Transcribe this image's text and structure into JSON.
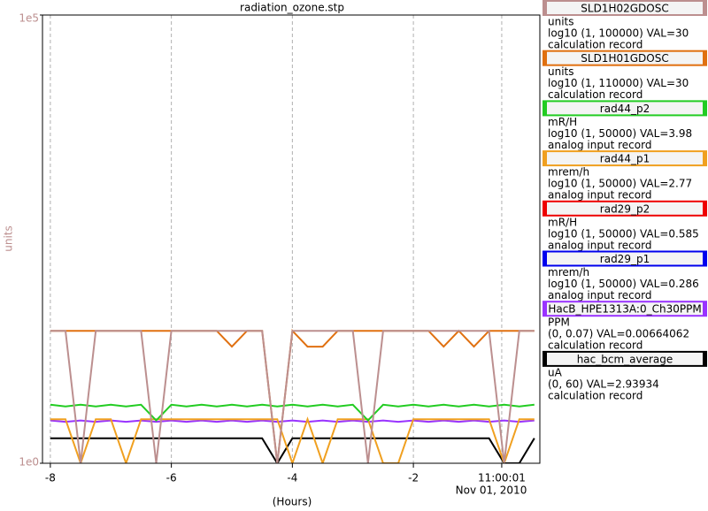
{
  "chart_data": {
    "type": "line",
    "title": "radiation_ozone.stp",
    "ylabel": "units",
    "xlabel": "(Hours)",
    "date_label": "Nov 01, 2010",
    "log_scale": true,
    "grid": true,
    "ylim": [
      1,
      100000
    ],
    "yticks": [
      {
        "value": 1,
        "label": "1e0"
      },
      {
        "value": 100000,
        "label": "1e5"
      }
    ],
    "xlim": [
      -8.13,
      0.09
    ],
    "xticks": [
      -8,
      -6,
      -4,
      -2,
      {
        "value": -0.54,
        "label": "11:00:01"
      }
    ],
    "x": [
      -8,
      -7.75,
      -7.5,
      -7.25,
      -7,
      -6.75,
      -6.5,
      -6.25,
      -6,
      -5.75,
      -5.5,
      -5.25,
      -5,
      -4.75,
      -4.5,
      -4.25,
      -4,
      -3.75,
      -3.5,
      -3.25,
      -3,
      -2.75,
      -2.5,
      -2.25,
      -2,
      -1.75,
      -1.5,
      -1.25,
      -1,
      -0.75,
      -0.5,
      -0.25,
      0
    ],
    "series": [
      {
        "name": "SLD1H02GDOSC",
        "color": "#bc8f8f",
        "units": "units",
        "range": "log10 (1, 100000) VAL=30",
        "record": "calculation record",
        "values": [
          30,
          30,
          1,
          30,
          30,
          30,
          30,
          1,
          30,
          30,
          30,
          30,
          30,
          30,
          30,
          1,
          30,
          30,
          30,
          30,
          30,
          1,
          30,
          30,
          30,
          30,
          30,
          30,
          30,
          30,
          1,
          30,
          30
        ]
      },
      {
        "name": "SLD1H01GDOSC",
        "color": "#e07010",
        "units": "units",
        "range": "log10 (1, 110000) VAL=30",
        "record": "calculation record",
        "values": [
          30,
          30,
          30,
          30,
          30,
          30,
          30,
          30,
          30,
          30,
          30,
          30,
          20,
          30,
          30,
          1,
          30,
          20,
          20,
          30,
          30,
          30,
          30,
          30,
          30,
          30,
          20,
          30,
          20,
          30,
          30,
          30,
          30
        ]
      },
      {
        "name": "rad44_p2",
        "color": "#22cc22",
        "units": "mR/H",
        "range": "log10 (1, 50000) VAL=3.98",
        "record": "analog input record",
        "values": [
          4.5,
          4.3,
          4.5,
          4.3,
          4.5,
          4.3,
          4.5,
          3,
          4.5,
          4.3,
          4.5,
          4.3,
          4.5,
          4.3,
          4.5,
          4.3,
          4.5,
          4.3,
          4.5,
          4.3,
          4.5,
          3,
          4.5,
          4.3,
          4.5,
          4.3,
          4.5,
          4.3,
          4.5,
          4.3,
          4.5,
          4.3,
          4.5
        ]
      },
      {
        "name": "rad44_p1",
        "color": "#f0a020",
        "units": "mrem/h",
        "range": "log10 (1, 50000) VAL=2.77",
        "record": "analog input record",
        "values": [
          3.1,
          3.1,
          1,
          3.1,
          3.1,
          1,
          3.1,
          3.1,
          3.1,
          3.1,
          3.1,
          3.1,
          3.1,
          3.1,
          3.1,
          3.1,
          1,
          3.1,
          1,
          3.1,
          3.1,
          3.1,
          1,
          1,
          3.1,
          3.1,
          3.1,
          3.1,
          3.1,
          3.1,
          1,
          3.1,
          3.1
        ]
      },
      {
        "name": "rad29_p2",
        "color": "#ee0000",
        "units": "mR/H",
        "range": "log10 (1, 50000) VAL=0.585",
        "record": "analog input record",
        "values": [
          null,
          null,
          null,
          null,
          null,
          null,
          null,
          null,
          null,
          null,
          null,
          null,
          null,
          null,
          null,
          null,
          null,
          null,
          null,
          null,
          null,
          null,
          null,
          null,
          null,
          null,
          null,
          null,
          null,
          null,
          null,
          null,
          null
        ]
      },
      {
        "name": "rad29_p1",
        "color": "#0000ee",
        "units": "mrem/h",
        "range": "log10 (1, 50000) VAL=0.286",
        "record": "analog input record",
        "values": [
          null,
          null,
          null,
          null,
          null,
          null,
          null,
          null,
          null,
          null,
          null,
          null,
          null,
          null,
          null,
          null,
          null,
          null,
          null,
          null,
          null,
          null,
          null,
          null,
          null,
          null,
          null,
          null,
          null,
          null,
          null,
          null,
          null
        ]
      },
      {
        "name": "HacB_HPE1313A:0_Ch30PPM",
        "color": "#9933ff",
        "units": "PPM",
        "range": "(0, 0.07) VAL=0.00664062",
        "record": "calculation record",
        "values": [
          3,
          2.9,
          3,
          2.9,
          3,
          2.9,
          3,
          2.9,
          3,
          2.9,
          3,
          2.9,
          3,
          2.9,
          3,
          2.9,
          3,
          2.9,
          3,
          2.9,
          3,
          2.9,
          3,
          2.9,
          3,
          2.9,
          3,
          2.9,
          3,
          2.9,
          3,
          2.9,
          3
        ]
      },
      {
        "name": "hac_bcm_average",
        "color": "#000000",
        "units": "uA",
        "range": "(0, 60) VAL=2.93934",
        "record": "calculation record",
        "values": [
          1.9,
          1.9,
          1.9,
          1.9,
          1.9,
          1.9,
          1.9,
          1.9,
          1.9,
          1.9,
          1.9,
          1.9,
          1.9,
          1.9,
          1.9,
          1,
          1.9,
          1.9,
          1.9,
          1.9,
          1.9,
          1.9,
          1.9,
          1.9,
          1.9,
          1.9,
          1.9,
          1.9,
          1.9,
          1.9,
          1,
          1,
          1.9
        ]
      }
    ]
  }
}
